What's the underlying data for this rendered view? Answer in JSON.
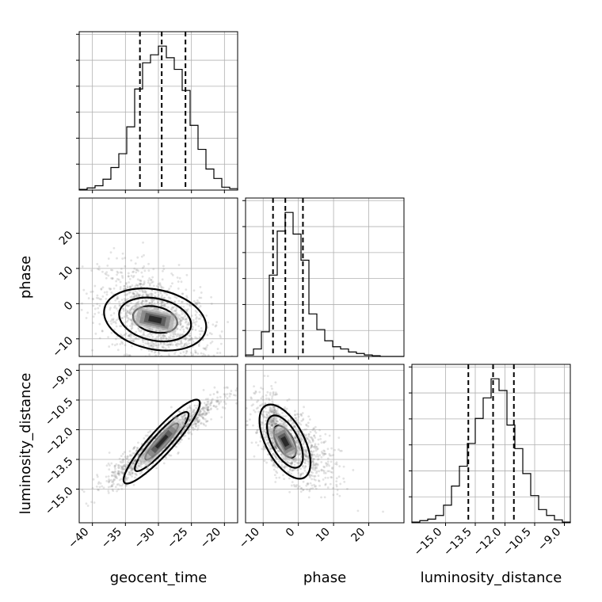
{
  "chart_data": {
    "type": "corner",
    "variables": [
      "geocent_time",
      "phase",
      "luminosity_distance"
    ],
    "axes": {
      "geocent_time": {
        "range": [
          -42,
          -18
        ],
        "ticks": [
          -40,
          -35,
          -30,
          -25,
          -20
        ],
        "tick_labels": [
          "−40",
          "−35",
          "−30",
          "−25",
          "−20"
        ]
      },
      "phase": {
        "range": [
          -15,
          30
        ],
        "ticks": [
          -10,
          0,
          10,
          20
        ],
        "tick_labels": [
          "−10",
          "0",
          "10",
          "20"
        ]
      },
      "luminosity_distance": {
        "range": [
          -16.7,
          -8.7
        ],
        "ticks": [
          -15.0,
          -13.5,
          -12.0,
          -10.5,
          -9.0
        ],
        "tick_labels": [
          "−15.0",
          "−13.5",
          "−12.0",
          "−10.5",
          "−9.0"
        ]
      }
    },
    "quantiles": {
      "geocent_time": [
        -32.8,
        -29.5,
        -25.9
      ],
      "phase": [
        -7.2,
        -3.7,
        1.3
      ],
      "luminosity_distance": [
        -13.85,
        -12.6,
        -11.55
      ]
    },
    "histograms": {
      "geocent_time": {
        "edges": [
          -42,
          -40.8,
          -39.6,
          -38.4,
          -37.2,
          -36,
          -34.8,
          -33.6,
          -32.4,
          -31.2,
          -30,
          -28.8,
          -27.6,
          -26.4,
          -25.2,
          -24,
          -22.8,
          -21.6,
          -20.4,
          -19.2,
          -18
        ],
        "counts": [
          1,
          3,
          6,
          15,
          31,
          50,
          87,
          139,
          175,
          186,
          198,
          182,
          166,
          137,
          89,
          56,
          29,
          16,
          4,
          2
        ]
      },
      "phase": {
        "edges": [
          -15,
          -12.75,
          -10.5,
          -8.25,
          -6,
          -3.75,
          -1.5,
          0.75,
          3,
          5.25,
          7.5,
          9.75,
          12,
          14.25,
          16.5,
          18.75,
          21,
          23.25,
          25.5,
          27.75,
          30
        ],
        "counts": [
          2,
          10,
          33,
          109,
          168,
          193,
          164,
          129,
          57,
          36,
          21,
          13,
          10,
          6,
          4,
          2,
          1,
          0,
          0,
          0
        ]
      },
      "luminosity_distance": {
        "edges": [
          -16.7,
          -16.3,
          -15.9,
          -15.5,
          -15.1,
          -14.7,
          -14.3,
          -13.9,
          -13.5,
          -13.1,
          -12.7,
          -12.3,
          -11.9,
          -11.5,
          -11.1,
          -10.7,
          -10.3,
          -9.9,
          -9.5,
          -9.1,
          -8.7
        ],
        "counts": [
          1,
          3,
          5,
          10,
          24,
          50,
          77,
          108,
          142,
          170,
          196,
          180,
          133,
          101,
          67,
          37,
          18,
          10,
          4,
          1
        ]
      }
    },
    "correlations": {
      "phase_vs_geocent_time": "negative",
      "luminosity_distance_vs_geocent_time": "strong positive",
      "luminosity_distance_vs_phase": "negative"
    }
  }
}
